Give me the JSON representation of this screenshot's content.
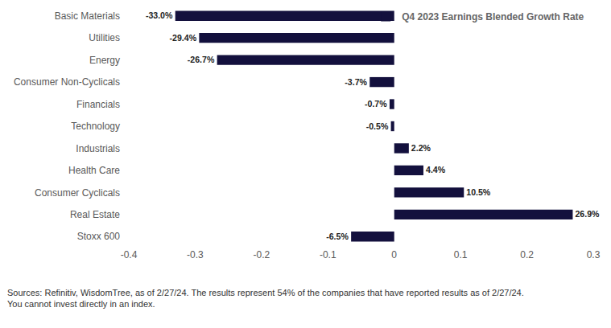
{
  "chart_data": {
    "type": "bar",
    "orientation": "horizontal",
    "categories": [
      "Basic Materials",
      "Utilities",
      "Energy",
      "Consumer Non-Cyclicals",
      "Financials",
      "Technology",
      "Industrials",
      "Health Care",
      "Consumer Cyclicals",
      "Real Estate",
      "Stoxx 600"
    ],
    "series": [
      {
        "name": "Q4 2023 Earnings Blended Growth Rate",
        "color": "#13103d",
        "values": [
          -0.33,
          -0.294,
          -0.267,
          -0.037,
          -0.007,
          -0.005,
          0.022,
          0.044,
          0.105,
          0.269,
          -0.065
        ],
        "value_labels": [
          "-33.0%",
          "-29.4%",
          "-26.7%",
          "-3.7%",
          "-0.7%",
          "-0.5%",
          "2.2%",
          "4.4%",
          "10.5%",
          "26.9%",
          "-6.5%"
        ]
      }
    ],
    "xlim": [
      -0.4,
      0.3
    ],
    "xticks": [
      -0.4,
      -0.3,
      -0.2,
      -0.1,
      0,
      0.1,
      0.2,
      0.3
    ],
    "grid": false,
    "data_labels": true,
    "legend": "upper right",
    "annotations": [
      "Sources: Refinitiv, WisdomTree, as of 2/27/24. The results represent 54% of the companies that have reported results as of 2/27/24.",
      "You cannot invest directly in an index."
    ]
  }
}
